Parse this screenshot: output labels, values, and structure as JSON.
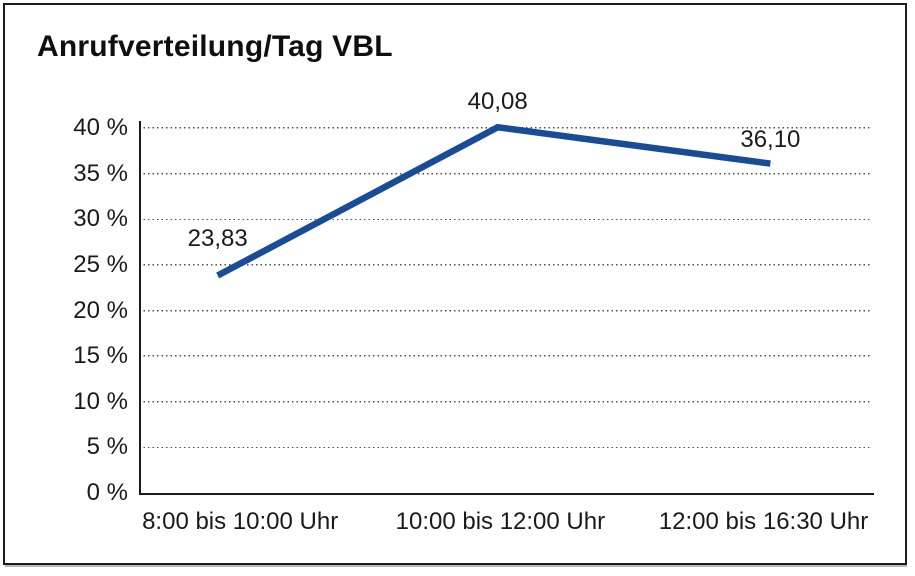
{
  "chart_data": {
    "type": "line",
    "title": "Anrufverteilung/Tag VBL",
    "categories": [
      "8:00 bis 10:00 Uhr",
      "10:00 bis 12:00 Uhr",
      "12:00 bis 16:30 Uhr"
    ],
    "series": [
      {
        "values": [
          23.83,
          40.08,
          36.1
        ],
        "point_labels": [
          "23,83",
          "40,08",
          "36,10"
        ],
        "color": "#184c96"
      }
    ],
    "ytick_labels": [
      "0 %",
      "5 %",
      "10 %",
      "15 %",
      "20 %",
      "25 %",
      "30 %",
      "35 %",
      "40 %"
    ],
    "ylim": [
      0,
      40
    ],
    "ytick_step": 5,
    "grid": "horizontal-dotted",
    "legend": "none",
    "axis_color": "#1b1b1b",
    "label_color": "#1a1a1a"
  }
}
